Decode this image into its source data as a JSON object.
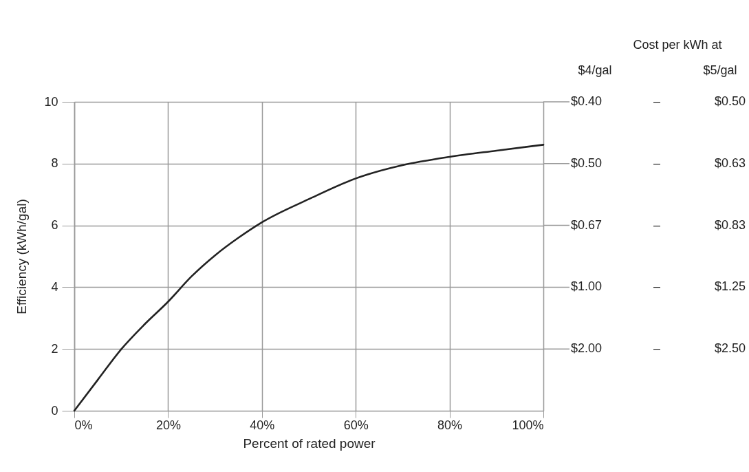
{
  "chart_data": {
    "type": "line",
    "xlabel": "Percent of rated power",
    "ylabel": "Efficiency (kWh/gal)",
    "x": [
      0,
      5,
      10,
      15,
      20,
      25,
      30,
      35,
      40,
      50,
      60,
      70,
      80,
      90,
      100
    ],
    "series": [
      {
        "color": "#222222",
        "values": [
          0,
          1.0,
          1.99,
          2.8,
          3.53,
          4.35,
          5.03,
          5.6,
          6.1,
          6.85,
          7.52,
          7.95,
          8.22,
          8.42,
          8.61
        ]
      }
    ],
    "xlim": [
      0,
      100
    ],
    "xticks": [
      {
        "value": 0,
        "label": "0%"
      },
      {
        "value": 20,
        "label": "20%"
      },
      {
        "value": 40,
        "label": "40%"
      },
      {
        "value": 60,
        "label": "60%"
      },
      {
        "value": 80,
        "label": "80%"
      },
      {
        "value": 100,
        "label": "100%"
      }
    ],
    "ylim": [
      0,
      10
    ],
    "yticks": [
      0,
      2,
      4,
      6,
      8,
      10
    ],
    "annotations": [
      "Cost per kWh at",
      "$4/gal",
      "$5/gal",
      "$0.40",
      "–",
      "$0.50",
      "$0.50",
      "–",
      "$0.63",
      "$0.67",
      "–",
      "$0.83",
      "$1.00",
      "–",
      "$1.25",
      "$2.00",
      "–",
      "$2.50"
    ],
    "grid": true,
    "line_style": "solid",
    "marker": "none"
  }
}
